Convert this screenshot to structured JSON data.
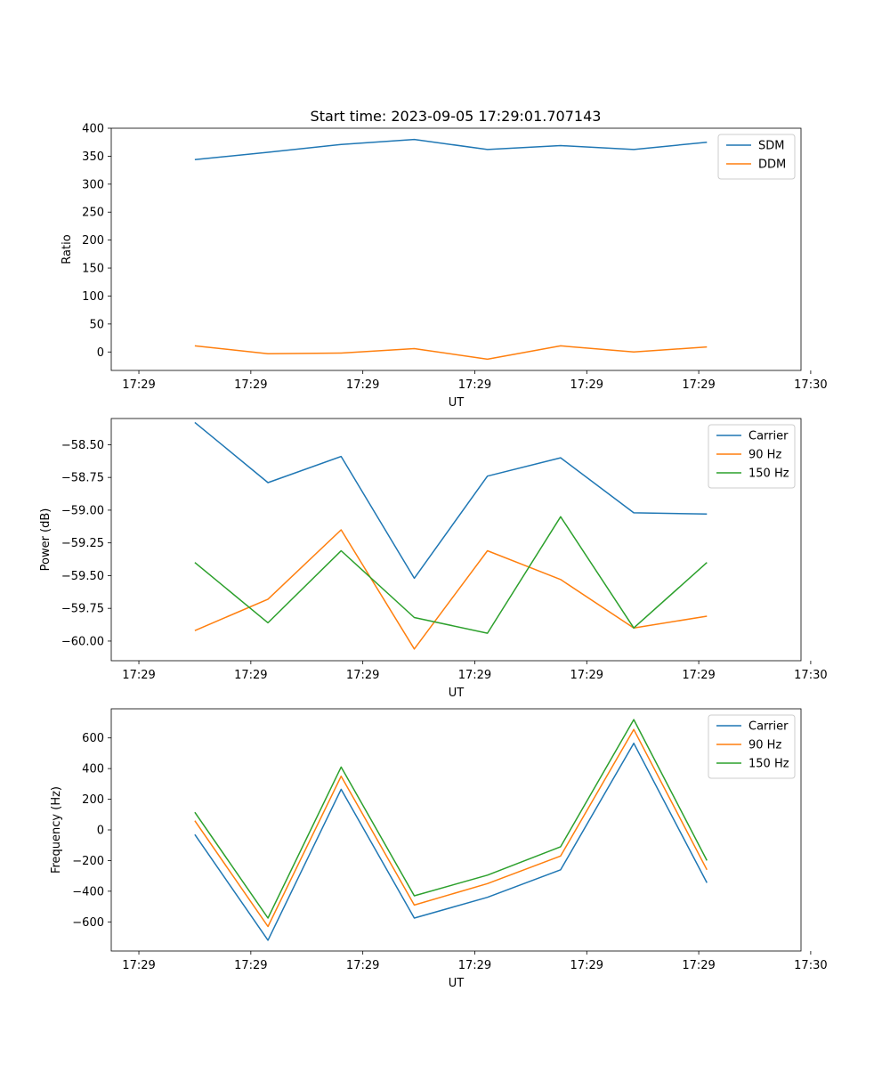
{
  "title": "Start time: 2023-09-05 17:29:01.707143",
  "chart_data": [
    {
      "type": "line",
      "title": "Start time: 2023-09-05 17:29:01.707143",
      "xlabel": "UT",
      "ylabel": "Ratio",
      "xlim": [
        -0.37,
        8.87
      ],
      "ylim": [
        -33,
        400
      ],
      "xticks": [
        {
          "value": 0,
          "label": "17:29"
        },
        {
          "value": 1.5,
          "label": "17:29"
        },
        {
          "value": 3,
          "label": "17:29"
        },
        {
          "value": 4.5,
          "label": "17:29"
        },
        {
          "value": 6,
          "label": "17:29"
        },
        {
          "value": 7.5,
          "label": "17:29"
        },
        {
          "value": 9,
          "label": "17:30"
        }
      ],
      "yticks": [
        {
          "value": 0,
          "label": "0"
        },
        {
          "value": 50,
          "label": "50"
        },
        {
          "value": 100,
          "label": "100"
        },
        {
          "value": 150,
          "label": "150"
        },
        {
          "value": 200,
          "label": "200"
        },
        {
          "value": 250,
          "label": "250"
        },
        {
          "value": 300,
          "label": "300"
        },
        {
          "value": 350,
          "label": "350"
        },
        {
          "value": 400,
          "label": "400"
        }
      ],
      "x": [
        0.75,
        1.73,
        2.71,
        3.69,
        4.67,
        5.65,
        6.63,
        7.61
      ],
      "legend_position": "top-right",
      "series": [
        {
          "name": "SDM",
          "color": "#1f77b4",
          "values": [
            344,
            357,
            371,
            380,
            362,
            369,
            362,
            375
          ]
        },
        {
          "name": "DDM",
          "color": "#ff7f0e",
          "values": [
            11,
            -3,
            -2,
            6,
            -13,
            11,
            0,
            9
          ]
        }
      ]
    },
    {
      "type": "line",
      "title": "",
      "xlabel": "UT",
      "ylabel": "Power (dB)",
      "xlim": [
        -0.37,
        8.87
      ],
      "ylim": [
        -60.15,
        -58.3
      ],
      "xticks": [
        {
          "value": 0,
          "label": "17:29"
        },
        {
          "value": 1.5,
          "label": "17:29"
        },
        {
          "value": 3,
          "label": "17:29"
        },
        {
          "value": 4.5,
          "label": "17:29"
        },
        {
          "value": 6,
          "label": "17:29"
        },
        {
          "value": 7.5,
          "label": "17:29"
        },
        {
          "value": 9,
          "label": "17:30"
        }
      ],
      "yticks": [
        {
          "value": -60.0,
          "label": "−60.00"
        },
        {
          "value": -59.75,
          "label": "−59.75"
        },
        {
          "value": -59.5,
          "label": "−59.50"
        },
        {
          "value": -59.25,
          "label": "−59.25"
        },
        {
          "value": -59.0,
          "label": "−59.00"
        },
        {
          "value": -58.75,
          "label": "−58.75"
        },
        {
          "value": -58.5,
          "label": "−58.50"
        }
      ],
      "x": [
        0.75,
        1.73,
        2.71,
        3.69,
        4.67,
        5.65,
        6.63,
        7.61
      ],
      "legend_position": "top-right",
      "series": [
        {
          "name": "Carrier",
          "color": "#1f77b4",
          "values": [
            -58.33,
            -58.79,
            -58.59,
            -59.52,
            -58.74,
            -58.6,
            -59.02,
            -59.03
          ]
        },
        {
          "name": "90 Hz",
          "color": "#ff7f0e",
          "values": [
            -59.92,
            -59.68,
            -59.15,
            -60.06,
            -59.31,
            -59.53,
            -59.9,
            -59.81
          ]
        },
        {
          "name": "150 Hz",
          "color": "#2ca02c",
          "values": [
            -59.4,
            -59.86,
            -59.31,
            -59.82,
            -59.94,
            -59.05,
            -59.9,
            -59.4
          ]
        }
      ]
    },
    {
      "type": "line",
      "title": "",
      "xlabel": "UT",
      "ylabel": "Frequency (Hz)",
      "xlim": [
        -0.37,
        8.87
      ],
      "ylim": [
        -790,
        790
      ],
      "xticks": [
        {
          "value": 0,
          "label": "17:29"
        },
        {
          "value": 1.5,
          "label": "17:29"
        },
        {
          "value": 3,
          "label": "17:29"
        },
        {
          "value": 4.5,
          "label": "17:29"
        },
        {
          "value": 6,
          "label": "17:29"
        },
        {
          "value": 7.5,
          "label": "17:29"
        },
        {
          "value": 9,
          "label": "17:30"
        }
      ],
      "yticks": [
        {
          "value": -600,
          "label": "−600"
        },
        {
          "value": -400,
          "label": "−400"
        },
        {
          "value": -200,
          "label": "−200"
        },
        {
          "value": 0,
          "label": "0"
        },
        {
          "value": 200,
          "label": "200"
        },
        {
          "value": 400,
          "label": "400"
        },
        {
          "value": 600,
          "label": "600"
        }
      ],
      "x": [
        0.75,
        1.73,
        2.71,
        3.69,
        4.67,
        5.65,
        6.63,
        7.61
      ],
      "legend_position": "top-right",
      "series": [
        {
          "name": "Carrier",
          "color": "#1f77b4",
          "values": [
            -30,
            -720,
            265,
            -575,
            -440,
            -260,
            565,
            -345
          ]
        },
        {
          "name": "90 Hz",
          "color": "#ff7f0e",
          "values": [
            60,
            -630,
            350,
            -490,
            -350,
            -170,
            655,
            -260
          ]
        },
        {
          "name": "150 Hz",
          "color": "#2ca02c",
          "values": [
            115,
            -575,
            410,
            -430,
            -295,
            -110,
            720,
            -200
          ]
        }
      ]
    }
  ]
}
